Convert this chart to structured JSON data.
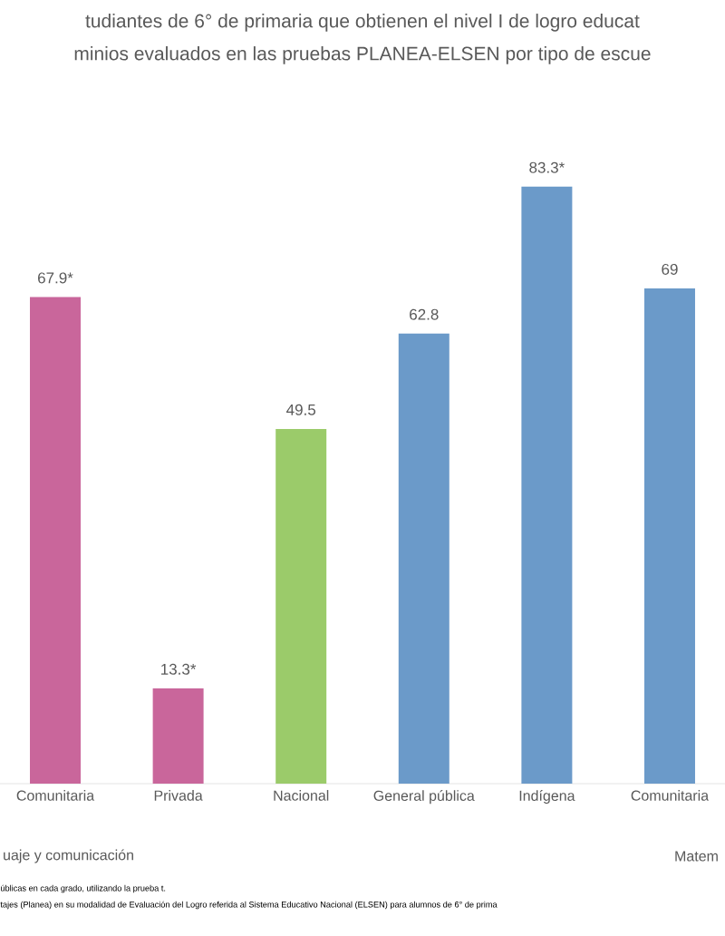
{
  "chart_data": {
    "type": "bar",
    "title": "tudiantes de 6° de primaria que obtienen el nivel I de logro educat",
    "subtitle": "minios evaluados en las pruebas PLANEA-ELSEN por tipo de escue",
    "categories": [
      "Comunitaria",
      "Privada",
      "Nacional",
      "General pública",
      "Indígena",
      "Comunitaria"
    ],
    "values": [
      67.9,
      13.3,
      49.5,
      62.8,
      83.3,
      69.1
    ],
    "value_labels": [
      "67.9*",
      "13.3*",
      "49.5",
      "62.8",
      "83.3*",
      "69"
    ],
    "colors": [
      "#c9669b",
      "#c9669b",
      "#9bcb6a",
      "#6b9ac9",
      "#6b9ac9",
      "#6b9ac9"
    ],
    "tick_labels": "x",
    "annotations": [
      "uaje y comunicación",
      "Matem",
      "úblicas en cada grado, utilizando la prueba t.",
      "tajes (Planea) en su modalidad de Evaluación del Logro referida al Sistema Educativo Nacional (ELSEN) para alumnos de 6° de prima"
    ]
  }
}
